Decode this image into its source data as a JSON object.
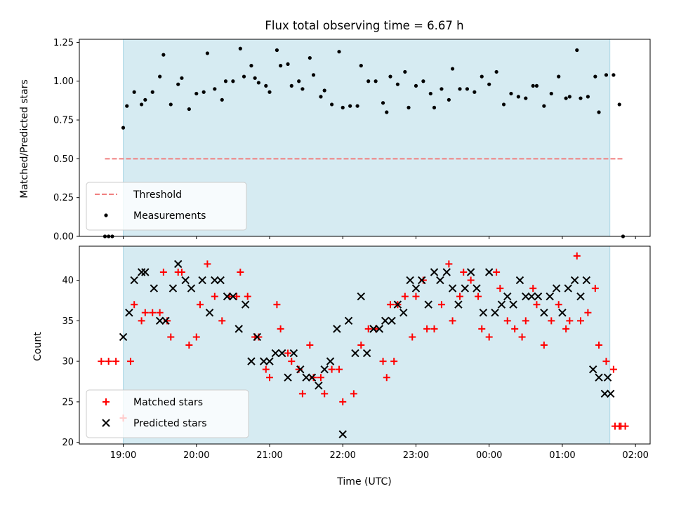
{
  "chart_data": [
    {
      "type": "scatter",
      "title": "Flux total observing time = 6.67 h",
      "xlabel": "",
      "ylabel": "Matched/Predicted stars",
      "ylim": [
        0,
        1.27
      ],
      "yticks": [
        "0.00",
        "0.25",
        "0.50",
        "0.75",
        "1.00",
        "1.25"
      ],
      "ytick_values": [
        0,
        0.25,
        0.5,
        0.75,
        1.0,
        1.25
      ],
      "observing_window": {
        "start": 19.0,
        "end": 25.65,
        "color": "#add8e6"
      },
      "threshold": {
        "name": "Threshold",
        "y": 0.5,
        "x_start": 18.75,
        "x_end": 25.83,
        "color": "#f08080"
      },
      "legend": {
        "position": "lower-left",
        "entries": [
          "Threshold",
          "Measurements"
        ]
      },
      "series": [
        {
          "name": "Measurements",
          "color": "#000000",
          "x": [
            18.75,
            18.8,
            18.85,
            19.0,
            19.05,
            19.15,
            19.25,
            19.3,
            19.4,
            19.5,
            19.55,
            19.65,
            19.75,
            19.8,
            19.9,
            20.0,
            20.1,
            20.15,
            20.25,
            20.35,
            20.4,
            20.5,
            20.6,
            20.65,
            20.75,
            20.8,
            20.85,
            20.95,
            21.0,
            21.1,
            21.15,
            21.25,
            21.3,
            21.4,
            21.45,
            21.55,
            21.6,
            21.7,
            21.75,
            21.85,
            21.95,
            22.0,
            22.1,
            22.2,
            22.25,
            22.35,
            22.45,
            22.55,
            22.6,
            22.65,
            22.75,
            22.85,
            22.9,
            23.0,
            23.1,
            23.2,
            23.25,
            23.35,
            23.45,
            23.5,
            23.6,
            23.7,
            23.8,
            23.9,
            24.0,
            24.1,
            24.2,
            24.3,
            24.4,
            24.5,
            24.6,
            24.65,
            24.75,
            24.85,
            24.95,
            25.05,
            25.1,
            25.2,
            25.25,
            25.35,
            25.45,
            25.5,
            25.6,
            25.7,
            25.78,
            25.83
          ],
          "y": [
            0.0,
            0.0,
            0.0,
            0.7,
            0.84,
            0.93,
            0.85,
            0.88,
            0.93,
            1.03,
            1.17,
            0.85,
            0.98,
            1.02,
            0.82,
            0.92,
            0.93,
            1.18,
            0.95,
            0.88,
            1.0,
            1.0,
            1.21,
            1.03,
            1.1,
            1.02,
            0.99,
            0.97,
            0.93,
            1.2,
            1.1,
            1.11,
            0.97,
            1.0,
            0.95,
            1.15,
            1.04,
            0.9,
            0.94,
            0.85,
            1.19,
            0.83,
            0.84,
            0.84,
            1.1,
            1.0,
            1.0,
            0.86,
            0.8,
            1.03,
            0.98,
            1.06,
            0.83,
            0.97,
            1.0,
            0.92,
            0.83,
            0.95,
            0.88,
            1.08,
            0.95,
            0.95,
            0.93,
            1.03,
            0.98,
            1.06,
            0.85,
            0.92,
            0.9,
            0.89,
            0.97,
            0.97,
            0.84,
            0.92,
            1.03,
            0.89,
            0.9,
            1.2,
            0.89,
            0.9,
            1.03,
            0.8,
            1.04,
            1.04,
            0.85,
            0.0
          ]
        }
      ]
    },
    {
      "type": "scatter",
      "xlabel": "Time (UTC)",
      "ylabel": "Count",
      "ylim": [
        19.8,
        44.2
      ],
      "yticks": [
        "20",
        "25",
        "30",
        "35",
        "40"
      ],
      "ytick_values": [
        20,
        25,
        30,
        35,
        40
      ],
      "xlim": [
        18.4,
        26.2
      ],
      "xtick_values": [
        19,
        20,
        21,
        22,
        23,
        24,
        25,
        26
      ],
      "xticks": [
        "19:00",
        "20:00",
        "21:00",
        "22:00",
        "23:00",
        "00:00",
        "01:00",
        "02:00"
      ],
      "observing_window": {
        "start": 19.0,
        "end": 25.65,
        "color": "#add8e6"
      },
      "legend": {
        "position": "lower-left",
        "entries": [
          "Matched stars",
          "Predicted stars"
        ]
      },
      "series": [
        {
          "name": "Matched stars",
          "marker": "plus",
          "color": "#ff0000",
          "x": [
            18.7,
            18.8,
            18.9,
            19.0,
            19.1,
            19.15,
            19.25,
            19.3,
            19.4,
            19.5,
            19.55,
            19.6,
            19.65,
            19.75,
            19.8,
            19.9,
            20.0,
            20.05,
            20.15,
            20.25,
            20.35,
            20.45,
            20.55,
            20.6,
            20.7,
            20.8,
            20.85,
            20.95,
            21.0,
            21.1,
            21.15,
            21.25,
            21.3,
            21.4,
            21.45,
            21.55,
            21.6,
            21.7,
            21.75,
            21.85,
            21.95,
            22.0,
            22.15,
            22.25,
            22.35,
            22.45,
            22.55,
            22.6,
            22.65,
            22.75,
            22.85,
            22.95,
            23.0,
            23.1,
            23.15,
            23.25,
            23.35,
            23.45,
            23.5,
            23.6,
            23.65,
            23.75,
            23.85,
            23.9,
            24.0,
            24.1,
            24.15,
            24.25,
            24.35,
            24.45,
            24.5,
            24.6,
            24.65,
            24.75,
            24.85,
            24.95,
            25.05,
            25.1,
            25.2,
            25.25,
            25.35,
            25.45,
            25.5,
            25.6,
            25.7,
            25.78,
            25.86
          ],
          "y": [
            30,
            30,
            30,
            23,
            30,
            37,
            35,
            36,
            36,
            36,
            41,
            35,
            33,
            41,
            41,
            32,
            33,
            37,
            42,
            38,
            35,
            38,
            38,
            41,
            38,
            33,
            33,
            29,
            28,
            37,
            34,
            31,
            30,
            29,
            26,
            32,
            28,
            28,
            26,
            29,
            29,
            25,
            26,
            32,
            34,
            34,
            30,
            28,
            37,
            37,
            38,
            33,
            38,
            40,
            34,
            34,
            37,
            42,
            35,
            38,
            41,
            40,
            38,
            34,
            33,
            41,
            39,
            35,
            34,
            33,
            35,
            39,
            37,
            32,
            35,
            37,
            34,
            35,
            43,
            35,
            36,
            39,
            32,
            30,
            29,
            22,
            22
          ],
          "extra_points": [
            [
              25.72,
              22
            ],
            [
              25.8,
              22
            ],
            [
              22.7,
              30
            ]
          ]
        },
        {
          "name": "Predicted stars",
          "marker": "x",
          "color": "#000000",
          "x": [
            19.0,
            19.08,
            19.15,
            19.25,
            19.3,
            19.42,
            19.5,
            19.58,
            19.68,
            19.75,
            19.85,
            19.93,
            20.08,
            20.18,
            20.25,
            20.33,
            20.42,
            20.5,
            20.58,
            20.67,
            20.75,
            20.83,
            20.92,
            21.0,
            21.08,
            21.17,
            21.25,
            21.33,
            21.42,
            21.5,
            21.58,
            21.67,
            21.75,
            21.83,
            21.92,
            22.0,
            22.08,
            22.17,
            22.25,
            22.33,
            22.42,
            22.5,
            22.58,
            22.67,
            22.75,
            22.83,
            22.92,
            23.0,
            23.08,
            23.17,
            23.25,
            23.33,
            23.42,
            23.5,
            23.58,
            23.67,
            23.75,
            23.83,
            23.92,
            24.0,
            24.08,
            24.17,
            24.25,
            24.33,
            24.42,
            24.5,
            24.58,
            24.67,
            24.75,
            24.83,
            24.92,
            25.0,
            25.08,
            25.17,
            25.25,
            25.33,
            25.42,
            25.5,
            25.58,
            25.62,
            25.66
          ],
          "y": [
            33,
            36,
            40,
            41,
            41,
            39,
            35,
            35,
            39,
            42,
            40,
            39,
            40,
            36,
            40,
            40,
            38,
            38,
            34,
            37,
            30,
            33,
            30,
            30,
            31,
            31,
            28,
            31,
            29,
            28,
            28,
            27,
            29,
            30,
            34,
            21,
            35,
            31,
            38,
            31,
            34,
            34,
            35,
            35,
            37,
            36,
            40,
            39,
            40,
            37,
            41,
            40,
            41,
            39,
            37,
            39,
            41,
            39,
            36,
            41,
            36,
            37,
            38,
            37,
            40,
            38,
            38,
            38,
            36,
            38,
            39,
            36,
            39,
            40,
            38,
            40,
            29,
            28,
            26,
            28,
            26
          ]
        }
      ]
    }
  ]
}
